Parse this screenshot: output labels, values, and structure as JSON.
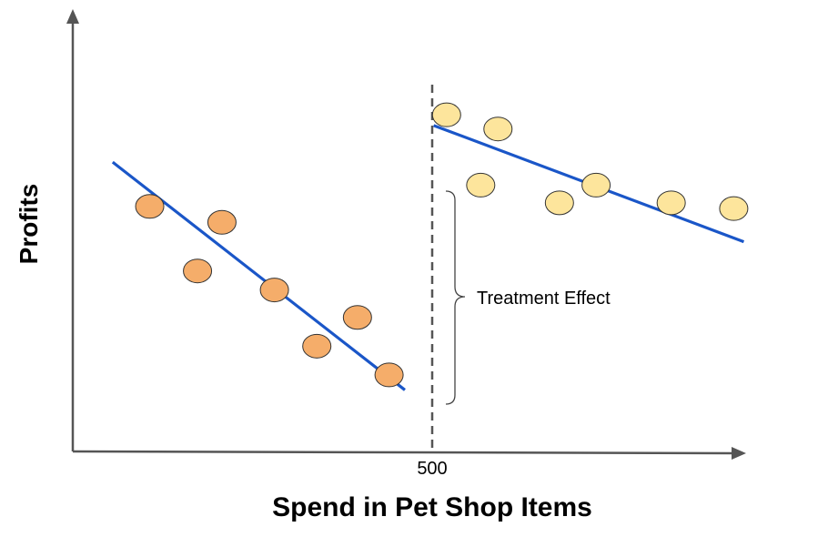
{
  "chart_data": {
    "type": "scatter",
    "title": "",
    "xlabel": "Spend in Pet Shop Items",
    "ylabel": "Profits",
    "grid": false,
    "legend": "none",
    "cutoff": {
      "x": 500,
      "label": "500"
    },
    "annotation": "Treatment Effect",
    "xlim": [
      0,
      1000
    ],
    "ylim": [
      0,
      100
    ],
    "series": [
      {
        "group": "before-cutoff",
        "color": "#f5ad6a",
        "points": [
          {
            "x": 214,
            "y": 55.4
          },
          {
            "x": 415,
            "y": 51.8
          },
          {
            "x": 347,
            "y": 40.8
          },
          {
            "x": 561,
            "y": 36.5
          },
          {
            "x": 679,
            "y": 23.8
          },
          {
            "x": 792,
            "y": 30.3
          },
          {
            "x": 880,
            "y": 17.3
          }
        ],
        "fit": {
          "x0": 111,
          "y0": 65.4,
          "x1": 924,
          "y1": 13.9
        }
      },
      {
        "group": "after-cutoff",
        "color": "#fde59c",
        "points": [
          {
            "x": 1040,
            "y": 76.1
          },
          {
            "x": 1183,
            "y": 72.9
          },
          {
            "x": 1135,
            "y": 60.2
          },
          {
            "x": 1354,
            "y": 56.2
          },
          {
            "x": 1456,
            "y": 60.2
          },
          {
            "x": 1665,
            "y": 56.2
          },
          {
            "x": 1839,
            "y": 54.9
          }
        ],
        "fit": {
          "x0": 1004,
          "y0": 73.7,
          "x1": 1867,
          "y1": 47.4
        }
      }
    ],
    "colors": {
      "axis": "#555555",
      "fit": "#1a56c8"
    }
  }
}
